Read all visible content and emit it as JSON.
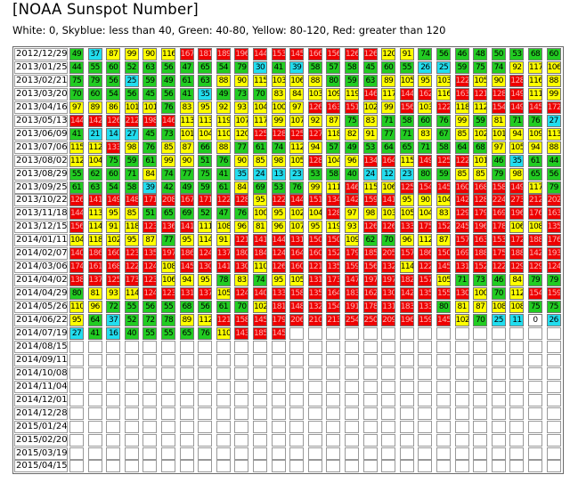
{
  "title": "[NOAA Sunspot Number]",
  "legend": "White: 0, Skyblue: less than 40, Green: 40-80, Yellow: 80-120, Red: greater than 120",
  "colors": {
    "white": "#ffffff",
    "skyblue": "#22ddee",
    "green": "#22cc22",
    "yellow": "#ffff00",
    "red": "#ee0000"
  },
  "rows": [
    {
      "date": "2012/12/29",
      "values": [
        49,
        37,
        87,
        99,
        90,
        116,
        167,
        181,
        189,
        196,
        144,
        153,
        145,
        166,
        156,
        126,
        126,
        120,
        91,
        74,
        56,
        46,
        48,
        50,
        53,
        68,
        60
      ]
    },
    {
      "date": "2013/01/25",
      "values": [
        44,
        55,
        60,
        52,
        63,
        56,
        47,
        65,
        54,
        79,
        30,
        41,
        39,
        58,
        57,
        58,
        45,
        60,
        55,
        26,
        25,
        59,
        75,
        74,
        92,
        117,
        106
      ]
    },
    {
      "date": "2013/02/21",
      "values": [
        75,
        79,
        56,
        25,
        59,
        49,
        61,
        63,
        88,
        90,
        115,
        103,
        106,
        88,
        80,
        59,
        63,
        89,
        105,
        95,
        103,
        122,
        105,
        90,
        128,
        116,
        88
      ]
    },
    {
      "date": "2013/03/20",
      "values": [
        70,
        60,
        54,
        56,
        45,
        56,
        41,
        35,
        49,
        73,
        70,
        83,
        84,
        103,
        109,
        119,
        146,
        117,
        144,
        162,
        116,
        163,
        121,
        128,
        149,
        111,
        99
      ]
    },
    {
      "date": "2013/04/16",
      "values": [
        97,
        89,
        86,
        101,
        101,
        76,
        83,
        95,
        92,
        93,
        104,
        100,
        97,
        126,
        163,
        151,
        102,
        99,
        156,
        103,
        122,
        118,
        112,
        154,
        149,
        145,
        172
      ]
    },
    {
      "date": "2013/05/13",
      "values": [
        144,
        142,
        126,
        212,
        198,
        146,
        113,
        113,
        119,
        107,
        117,
        99,
        107,
        92,
        87,
        75,
        83,
        71,
        58,
        60,
        76,
        99,
        59,
        81,
        71,
        76,
        27
      ]
    },
    {
      "date": "2013/06/09",
      "values": [
        41,
        21,
        14,
        27,
        45,
        73,
        101,
        104,
        110,
        120,
        125,
        128,
        125,
        127,
        118,
        82,
        91,
        77,
        71,
        83,
        67,
        85,
        102,
        101,
        94,
        109,
        113
      ]
    },
    {
      "date": "2013/07/06",
      "values": [
        115,
        112,
        133,
        98,
        76,
        85,
        87,
        66,
        88,
        77,
        61,
        74,
        112,
        94,
        57,
        49,
        53,
        64,
        65,
        71,
        58,
        64,
        68,
        97,
        105,
        94,
        88
      ]
    },
    {
      "date": "2013/08/02",
      "values": [
        112,
        104,
        75,
        59,
        61,
        99,
        90,
        51,
        76,
        90,
        85,
        98,
        105,
        128,
        104,
        96,
        134,
        164,
        115,
        149,
        125,
        122,
        101,
        46,
        35,
        61,
        44
      ]
    },
    {
      "date": "2013/08/29",
      "values": [
        55,
        62,
        60,
        71,
        84,
        74,
        77,
        75,
        41,
        35,
        24,
        13,
        23,
        53,
        58,
        40,
        24,
        12,
        23,
        80,
        59,
        85,
        85,
        79,
        98,
        65,
        56
      ]
    },
    {
      "date": "2013/09/25",
      "values": [
        61,
        63,
        54,
        58,
        39,
        42,
        49,
        59,
        61,
        84,
        69,
        53,
        76,
        99,
        111,
        146,
        115,
        106,
        125,
        154,
        145,
        160,
        168,
        158,
        149,
        117,
        79
      ]
    },
    {
      "date": "2013/10/22",
      "values": [
        126,
        141,
        149,
        148,
        171,
        208,
        167,
        171,
        122,
        128,
        95,
        122,
        144,
        151,
        134,
        142,
        159,
        141,
        95,
        90,
        104,
        142,
        128,
        224,
        273,
        212,
        202
      ]
    },
    {
      "date": "2013/11/18",
      "values": [
        144,
        113,
        95,
        85,
        51,
        65,
        69,
        52,
        47,
        76,
        100,
        95,
        102,
        104,
        128,
        97,
        98,
        103,
        105,
        104,
        83,
        129,
        179,
        169,
        196,
        176,
        163
      ]
    },
    {
      "date": "2013/12/15",
      "values": [
        156,
        114,
        91,
        118,
        123,
        136,
        141,
        111,
        108,
        96,
        81,
        96,
        107,
        95,
        119,
        93,
        126,
        126,
        133,
        175,
        152,
        245,
        196,
        178,
        106,
        108,
        135
      ]
    },
    {
      "date": "2014/01/11",
      "values": [
        104,
        118,
        102,
        95,
        87,
        77,
        95,
        114,
        91,
        121,
        141,
        144,
        131,
        150,
        150,
        109,
        62,
        70,
        96,
        112,
        87,
        157,
        163,
        153,
        172,
        188,
        176
      ]
    },
    {
      "date": "2014/02/07",
      "values": [
        140,
        186,
        160,
        123,
        135,
        197,
        186,
        124,
        137,
        180,
        184,
        124,
        164,
        160,
        152,
        179,
        185,
        205,
        157,
        186,
        150,
        169,
        188,
        175,
        188,
        142,
        193
      ]
    },
    {
      "date": "2014/03/06",
      "values": [
        174,
        161,
        168,
        122,
        124,
        108,
        145,
        130,
        141,
        130,
        110,
        126,
        160,
        121,
        135,
        159,
        156,
        132,
        114,
        122,
        145,
        131,
        152,
        122,
        129,
        129,
        124
      ]
    },
    {
      "date": "2014/04/02",
      "values": [
        138,
        137,
        125,
        173,
        123,
        106,
        94,
        95,
        78,
        83,
        74,
        95,
        105,
        131,
        173,
        147,
        197,
        197,
        182,
        157,
        105,
        71,
        73,
        46,
        84,
        79,
        79
      ]
    },
    {
      "date": "2014/04/29",
      "values": [
        80,
        81,
        93,
        114,
        124,
        123,
        131,
        137,
        105,
        124,
        140,
        133,
        158,
        135,
        164,
        183,
        162,
        130,
        142,
        135,
        155,
        130,
        100,
        70,
        112,
        154,
        159
      ]
    },
    {
      "date": "2014/05/26",
      "values": [
        110,
        96,
        72,
        55,
        56,
        55,
        68,
        56,
        61,
        70,
        102,
        181,
        148,
        132,
        154,
        191,
        178,
        131,
        183,
        133,
        80,
        81,
        87,
        108,
        108,
        75,
        75
      ]
    },
    {
      "date": "2014/06/22",
      "values": [
        95,
        64,
        37,
        52,
        72,
        78,
        89,
        112,
        121,
        158,
        145,
        179,
        206,
        210,
        213,
        254,
        250,
        209,
        196,
        159,
        145,
        102,
        70,
        25,
        11,
        0,
        26
      ]
    },
    {
      "date": "2014/07/19",
      "values": [
        27,
        41,
        16,
        40,
        55,
        55,
        65,
        76,
        110,
        143,
        185,
        145,
        null,
        null,
        null,
        null,
        null,
        null,
        null,
        null,
        null,
        null,
        null,
        null,
        null,
        null,
        null
      ]
    },
    {
      "date": "2014/08/15",
      "values": []
    },
    {
      "date": "2014/09/11",
      "values": []
    },
    {
      "date": "2014/10/08",
      "values": []
    },
    {
      "date": "2014/11/04",
      "values": []
    },
    {
      "date": "2014/12/01",
      "values": []
    },
    {
      "date": "2014/12/28",
      "values": []
    },
    {
      "date": "2015/01/24",
      "values": []
    },
    {
      "date": "2015/02/20",
      "values": []
    },
    {
      "date": "2015/03/19",
      "values": []
    },
    {
      "date": "2015/04/15",
      "values": []
    }
  ]
}
